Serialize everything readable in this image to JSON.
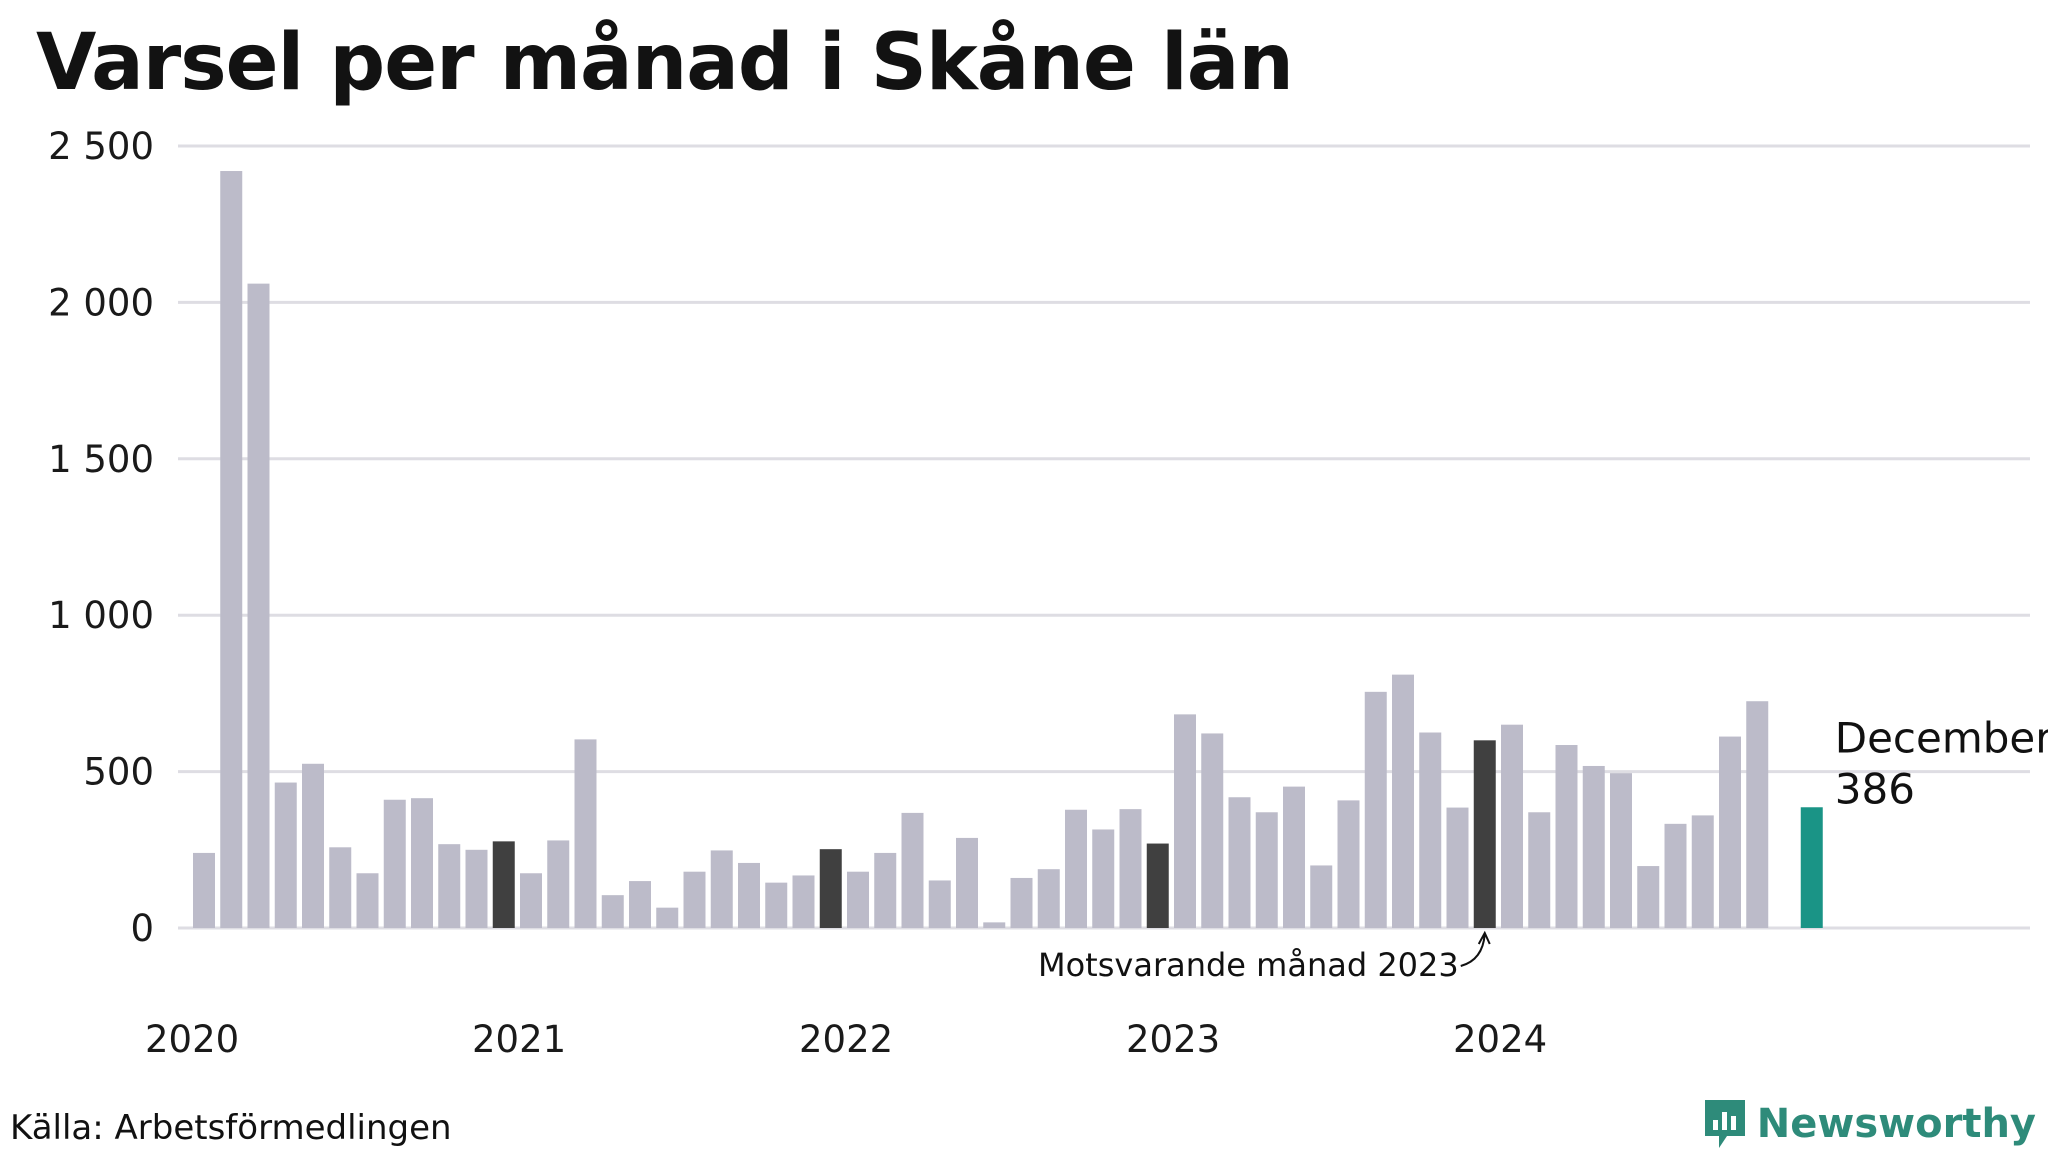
{
  "title": "Varsel per månad i Skåne län",
  "source": "Källa: Arbetsförmedlingen",
  "brand": "Newsworthy",
  "colors": {
    "bar_default": "#bcbbc9",
    "bar_same_month": "#404040",
    "bar_latest": "#1a9486",
    "grid": "#dedde3",
    "brand": "#2e8b7a"
  },
  "icons": {
    "brand_logo": "newsworthy-logo-icon"
  },
  "callout": {
    "month": "December",
    "value": "386"
  },
  "annotation": "Motsvarande månad 2023",
  "chart_data": {
    "type": "bar",
    "title": "Varsel per månad i Skåne län",
    "xlabel": "",
    "ylabel": "",
    "ylim": [
      0,
      2500
    ],
    "yticks": [
      {
        "value": 0,
        "label": "0"
      },
      {
        "value": 500,
        "label": "500"
      },
      {
        "value": 1000,
        "label": "1 000"
      },
      {
        "value": 1500,
        "label": "1 500"
      },
      {
        "value": 2000,
        "label": "2 000"
      },
      {
        "value": 2500,
        "label": "2 500"
      }
    ],
    "year_labels": [
      {
        "label": "2020",
        "index": 0
      },
      {
        "label": "2021",
        "index": 12
      },
      {
        "label": "2022",
        "index": 24
      },
      {
        "label": "2023",
        "index": 36
      },
      {
        "label": "2024",
        "index": 48
      }
    ],
    "grid": true,
    "highlight_same_month_indices": [
      11,
      23,
      35,
      47
    ],
    "highlight_latest_index": 59,
    "values": [
      240,
      2420,
      2060,
      465,
      525,
      258,
      175,
      410,
      415,
      268,
      250,
      277,
      175,
      280,
      603,
      105,
      150,
      65,
      180,
      248,
      208,
      145,
      168,
      252,
      180,
      240,
      368,
      152,
      288,
      18,
      160,
      188,
      378,
      315,
      380,
      270,
      683,
      622,
      418,
      370,
      452,
      200,
      408,
      755,
      810,
      625,
      385,
      600,
      650,
      370,
      585,
      518,
      495,
      198,
      333,
      360,
      612,
      725,
      0,
      386
    ]
  }
}
